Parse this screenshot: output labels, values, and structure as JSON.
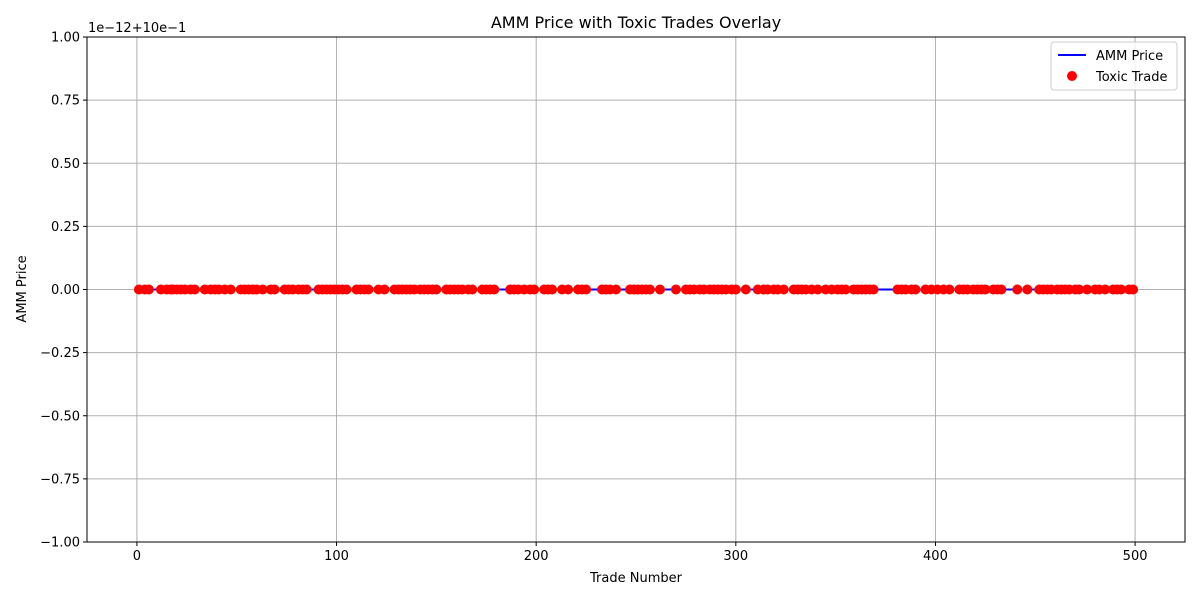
{
  "chart_data": {
    "type": "line",
    "title": "AMM Price with Toxic Trades Overlay",
    "xlabel": "Trade Number",
    "ylabel": "AMM Price",
    "offset_text": "1e−12+10e−1",
    "xlim": [
      -25,
      525
    ],
    "ylim": [
      -1.0,
      1.0
    ],
    "x_ticks": [
      0,
      100,
      200,
      300,
      400,
      500
    ],
    "x_tick_labels": [
      "0",
      "100",
      "200",
      "300",
      "400",
      "500"
    ],
    "y_ticks": [
      -1.0,
      -0.75,
      -0.5,
      -0.25,
      0.0,
      0.25,
      0.5,
      0.75,
      1.0
    ],
    "y_tick_labels": [
      "−1.00",
      "−0.75",
      "−0.50",
      "−0.25",
      "0.00",
      "0.25",
      "0.50",
      "0.75",
      "1.00"
    ],
    "grid": true,
    "legend_position": "top-right",
    "series": [
      {
        "name": "AMM Price",
        "kind": "line",
        "color": "#0000ff",
        "x_range": [
          0,
          499
        ],
        "y": 0.0
      },
      {
        "name": "Toxic Trade",
        "kind": "scatter",
        "color": "#ff0000",
        "y": 0.0,
        "x": [
          1,
          4,
          6,
          12,
          15,
          17,
          18,
          20,
          22,
          24,
          27,
          29,
          34,
          37,
          39,
          41,
          44,
          47,
          52,
          54,
          56,
          58,
          60,
          63,
          67,
          69,
          74,
          76,
          78,
          81,
          83,
          85,
          91,
          93,
          95,
          97,
          99,
          101,
          103,
          105,
          110,
          112,
          114,
          116,
          121,
          124,
          129,
          131,
          133,
          135,
          137,
          139,
          142,
          144,
          146,
          148,
          150,
          155,
          157,
          159,
          161,
          163,
          166,
          168,
          173,
          175,
          177,
          179,
          187,
          189,
          191,
          194,
          197,
          199,
          204,
          206,
          208,
          213,
          216,
          221,
          223,
          225,
          233,
          235,
          237,
          240,
          247,
          249,
          251,
          253,
          255,
          257,
          262,
          270,
          275,
          277,
          279,
          282,
          284,
          287,
          289,
          291,
          293,
          295,
          298,
          300,
          305,
          311,
          314,
          316,
          319,
          321,
          324,
          329,
          331,
          333,
          335,
          338,
          341,
          345,
          348,
          351,
          353,
          355,
          359,
          361,
          363,
          365,
          367,
          369,
          381,
          383,
          385,
          388,
          390,
          395,
          398,
          401,
          404,
          407,
          412,
          414,
          416,
          419,
          421,
          423,
          425,
          429,
          431,
          433,
          441,
          446,
          452,
          454,
          456,
          458,
          461,
          463,
          465,
          467,
          470,
          472,
          476,
          480,
          482,
          485,
          489,
          491,
          493,
          497,
          499
        ]
      }
    ]
  }
}
